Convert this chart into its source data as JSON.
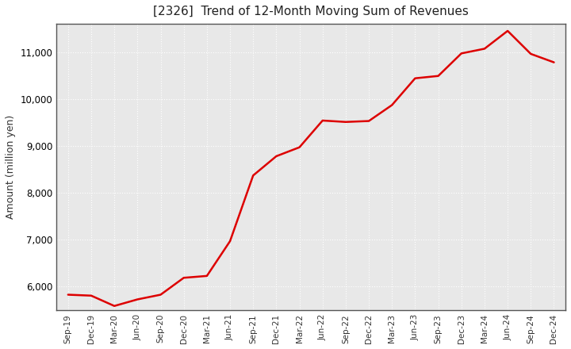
{
  "title": "[2326]  Trend of 12-Month Moving Sum of Revenues",
  "ylabel": "Amount (million yen)",
  "line_color": "#dd0000",
  "background_color": "#ffffff",
  "plot_bg_color": "#e8e8e8",
  "grid_color": "#ffffff",
  "ylim": [
    5500,
    11600
  ],
  "yticks": [
    6000,
    7000,
    8000,
    9000,
    10000,
    11000
  ],
  "x_labels": [
    "Sep-19",
    "Dec-19",
    "Mar-20",
    "Jun-20",
    "Sep-20",
    "Dec-20",
    "Mar-21",
    "Jun-21",
    "Sep-21",
    "Dec-21",
    "Mar-22",
    "Jun-22",
    "Sep-22",
    "Dec-22",
    "Mar-23",
    "Jun-23",
    "Sep-23",
    "Dec-23",
    "Mar-24",
    "Jun-24",
    "Sep-24",
    "Dec-24"
  ],
  "values": [
    5830,
    5810,
    5590,
    5730,
    5830,
    6190,
    6230,
    6970,
    8370,
    8780,
    8970,
    9540,
    9510,
    9530,
    9870,
    10440,
    10490,
    10970,
    11070,
    11450,
    10960,
    10780
  ]
}
